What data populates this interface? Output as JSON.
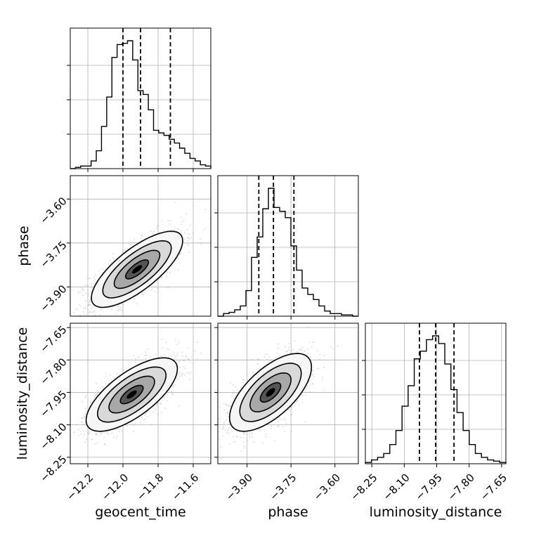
{
  "chart_data": {
    "type": "corner",
    "parameters": [
      "geocent_time",
      "phase",
      "luminosity_distance"
    ],
    "grid": true,
    "axes": {
      "geocent_time": {
        "label": "geocent_time",
        "lim": [
          -12.3,
          -11.5
        ],
        "ticks": [
          -12.2,
          -12.0,
          -11.8,
          -11.6
        ],
        "tick_labels": [
          "−12.2",
          "−12.0",
          "−11.8",
          "−11.6"
        ]
      },
      "phase": {
        "label": "phase",
        "lim": [
          -4.0,
          -3.52
        ],
        "ticks": [
          -3.9,
          -3.75,
          -3.6
        ],
        "tick_labels": [
          "−3.90",
          "−3.75",
          "−3.60"
        ]
      },
      "luminosity_distance": {
        "label": "luminosity_distance",
        "lim": [
          -8.28,
          -7.63
        ],
        "ticks": [
          -8.25,
          -8.1,
          -7.95,
          -7.8,
          -7.65
        ],
        "tick_labels": [
          "−8.25",
          "−8.10",
          "−7.95",
          "−7.80",
          "−7.65"
        ]
      }
    },
    "histograms": [
      {
        "parameter": "geocent_time",
        "bin_edges_range": [
          -12.3,
          -11.5
        ],
        "counts": [
          0.0,
          0.01,
          0.02,
          0.02,
          0.06,
          0.14,
          0.33,
          0.56,
          0.87,
          0.97,
          0.98,
          1.0,
          0.85,
          0.61,
          0.58,
          0.46,
          0.3,
          0.28,
          0.26,
          0.23,
          0.2,
          0.16,
          0.12,
          0.08,
          0.06,
          0.03,
          0.02
        ],
        "quantiles": [
          -12.0,
          -11.9,
          -11.73
        ]
      },
      {
        "parameter": "phase",
        "bin_edges_range": [
          -4.0,
          -3.52
        ],
        "counts": [
          0.0,
          0.02,
          0.03,
          0.05,
          0.08,
          0.2,
          0.46,
          0.62,
          0.84,
          1.0,
          0.85,
          0.82,
          0.77,
          0.55,
          0.36,
          0.22,
          0.17,
          0.13,
          0.08,
          0.04,
          0.02,
          0.02,
          0.01,
          0.01,
          0.0
        ],
        "quantiles": [
          -3.86,
          -3.81,
          -3.74
        ]
      },
      {
        "parameter": "luminosity_distance",
        "bin_edges_range": [
          -8.28,
          -7.63
        ],
        "counts": [
          0.01,
          0.03,
          0.05,
          0.08,
          0.15,
          0.26,
          0.45,
          0.61,
          0.82,
          0.88,
          0.97,
          1.0,
          0.94,
          0.78,
          0.58,
          0.4,
          0.26,
          0.15,
          0.08,
          0.05,
          0.03,
          0.02,
          0.01
        ],
        "quantiles": [
          -8.03,
          -7.955,
          -7.87
        ]
      }
    ],
    "pairs": [
      {
        "x": "geocent_time",
        "y": "phase",
        "mean": [
          -11.92,
          -3.84
        ],
        "std": [
          0.13,
          0.065
        ],
        "correlation": 0.75
      },
      {
        "x": "geocent_time",
        "y": "luminosity_distance",
        "mean": [
          -11.95,
          -7.96
        ],
        "std": [
          0.13,
          0.085
        ],
        "correlation": 0.7
      },
      {
        "x": "phase",
        "y": "luminosity_distance",
        "mean": [
          -3.82,
          -7.95
        ],
        "std": [
          0.07,
          0.09
        ],
        "correlation": 0.65
      }
    ],
    "contour_levels_sigma": [
      0.5,
      1.0,
      1.5,
      2.0
    ]
  }
}
